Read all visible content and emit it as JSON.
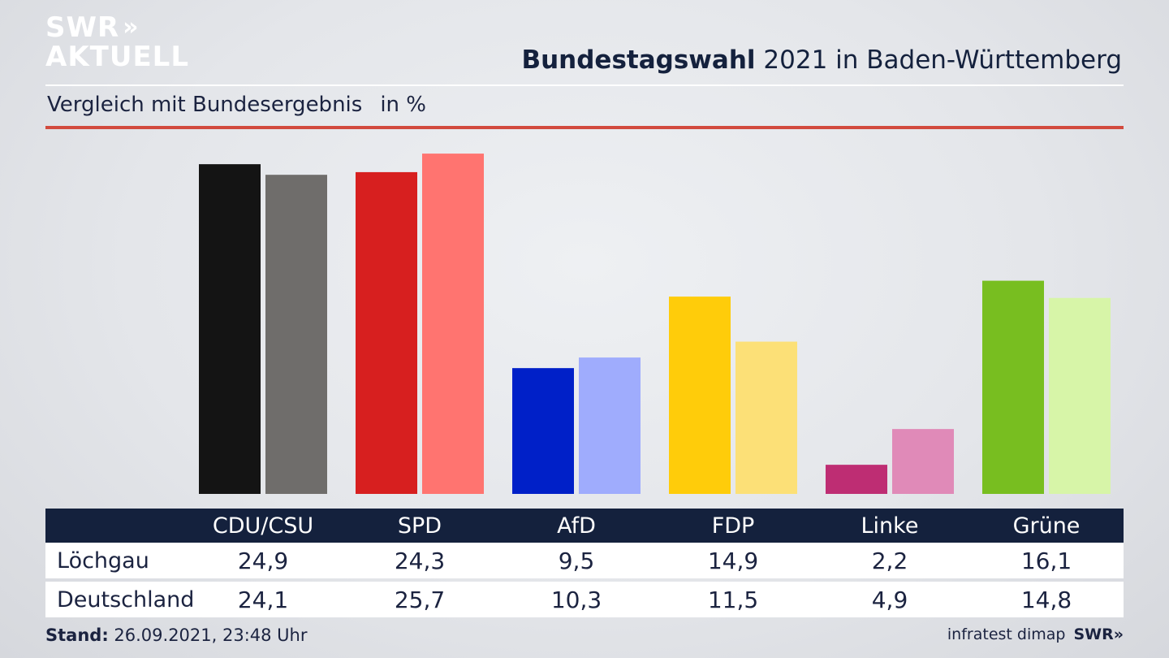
{
  "brand": {
    "line1": "SWR",
    "line2": "AKTUELL",
    "chevrons": "»"
  },
  "header": {
    "title_bold": "Bundestagswahl",
    "title_rest": " 2021 in Baden-Württemberg"
  },
  "subheader": {
    "text": "Vergleich mit Bundesergebnis",
    "unit": "in %"
  },
  "chart_data": {
    "type": "bar",
    "title": "Bundestagswahl 2021 in Baden-Württemberg",
    "subtitle": "Vergleich mit Bundesergebnis",
    "unit": "in %",
    "categories": [
      "CDU/CSU",
      "SPD",
      "AfD",
      "FDP",
      "Linke",
      "Grüne"
    ],
    "series": [
      {
        "name": "Löchgau",
        "values": [
          24.9,
          24.3,
          9.5,
          14.9,
          2.2,
          16.1
        ],
        "labels": [
          "24,9",
          "24,3",
          "9,5",
          "14,9",
          "2,2",
          "16,1"
        ]
      },
      {
        "name": "Deutschland",
        "values": [
          24.1,
          25.7,
          10.3,
          11.5,
          4.9,
          14.8
        ],
        "labels": [
          "24,1",
          "25,7",
          "10,3",
          "11,5",
          "4,9",
          "14,8"
        ]
      }
    ],
    "colors_local": [
      "#141414",
      "#d71f1f",
      "#0020c8",
      "#ffcc0a",
      "#be2d73",
      "#78be20"
    ],
    "colors_national": [
      "#6f6d6b",
      "#ff7470",
      "#9facfd",
      "#fce077",
      "#e08ab8",
      "#d7f5a8"
    ],
    "ylim": [
      0,
      26
    ],
    "grid": false,
    "legend": "table-below"
  },
  "footer": {
    "label": "Stand:",
    "value": " 26.09.2021, 23:48 Uhr"
  },
  "source": {
    "text": "infratest dimap",
    "brand": "SWR»"
  }
}
